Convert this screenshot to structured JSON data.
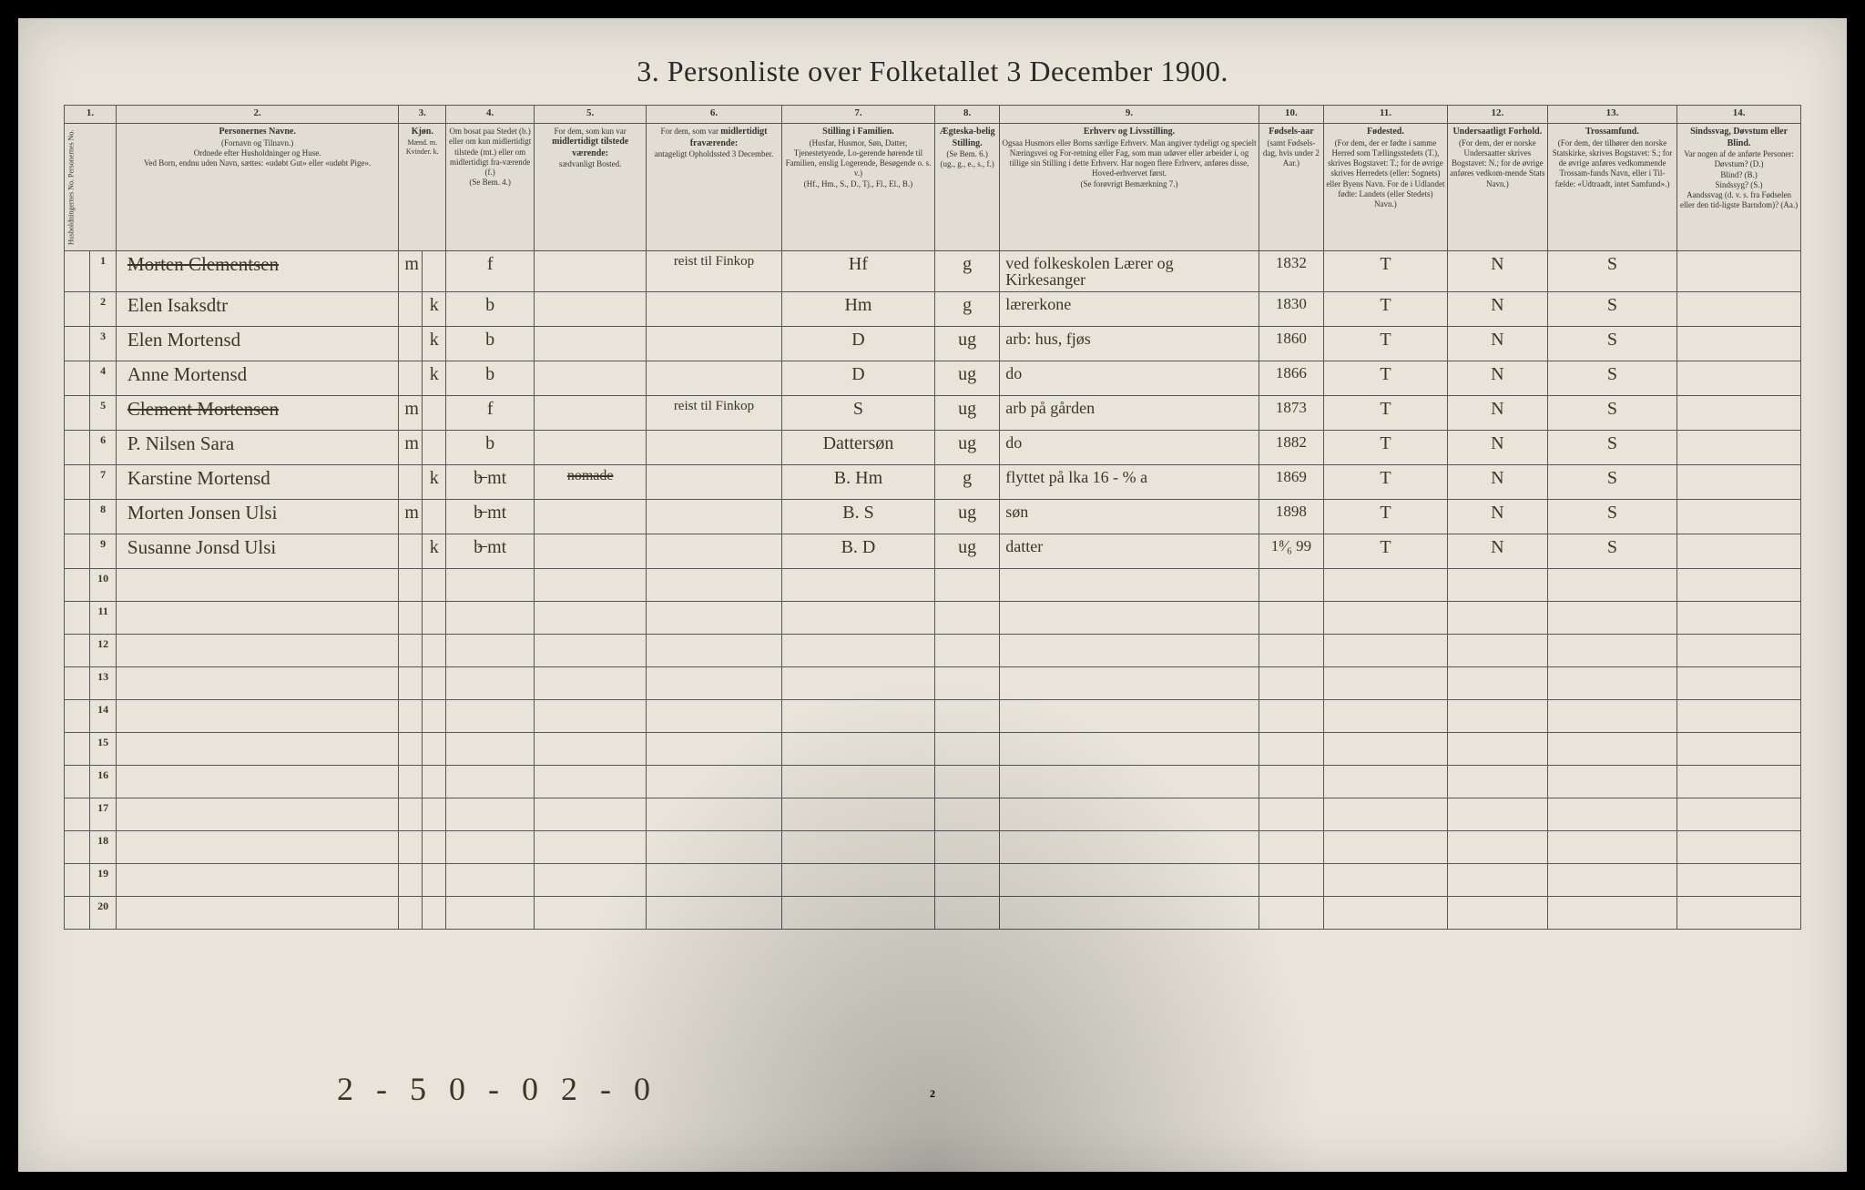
{
  "title": "3. Personliste over Folketallet 3 December 1900.",
  "page_number": "2",
  "footer_note": "2 - 5 0 - 0  2 - 0",
  "col_numbers": [
    "1.",
    "2.",
    "3.",
    "4.",
    "5.",
    "6.",
    "7.",
    "8.",
    "9.",
    "10.",
    "11.",
    "12.",
    "13.",
    "14."
  ],
  "headers": {
    "1": "Husholdningernes No.\nPersonernes No.",
    "2": "<strong>Personernes Navne.</strong><br>(Fornavn og Tilnavn.)<br>Ordnede efter Husholdninger og Huse.<br>Ved Born, endnu uden Navn, sættes: «udøbt Gut» eller «udøbt Pige».",
    "3": "<strong>Kjøn.</strong><br>Mænd. m.<br>Kvinder. k.",
    "4": "Om bosat paa Stedet (b.) eller om kun midlertidigt tilstede (mt.) eller om midlertidigt fra-værende (f.)<br>(Se Bem. 4.)",
    "5": "For dem, som kun var <strong>midlertidigt tilstede værende:</strong><br>sædvanligt Bosted.",
    "6": "For dem, som var <strong>midlertidigt fraværende:</strong><br>antageligt Opholdssted 3 December.",
    "7": "<strong>Stilling i Familien.</strong><br>(Husfar, Husmor, Søn, Datter, Tjenestetyende, Lo-gerende hørende til Familien, enslig Logerende, Besøgende o. s. v.)<br>(Hf., Hm., S., D., Tj., Fl., El., B.)",
    "8": "<strong>Ægteska-belig Stilling.</strong><br>(Se Bem. 6.)<br>(ug., g., e., s., f.)",
    "9": "<strong>Erhverv og Livsstilling.</strong><br>Ogsaa Husmors eller Borns særlige Erhverv. Man angiver tydeligt og specielt Næringsvei og For-retning eller Fag, som man udøver eller arbeider i, og tillige sin Stilling i dette Erhverv. Har nogen flere Erhverv, anføres disse, Hoved-erhvervet først.<br>(Se forøvrigt Bemærkning 7.)",
    "10": "<strong>Fødsels-aar</strong><br>(samt Fødsels-dag, hvis under 2 Aar.)",
    "11": "<strong>Fødested.</strong><br>(For dem, der er fødte i samme Herred som Tællingsstedets (T.), skrives Bogstavet: T.; for de øvrige skrives Herredets (eller: Sognets) eller Byens Navn. For de i Udlandet fødte: Landets (eller Stedets) Navn.)",
    "12": "<strong>Undersaatligt Forhold.</strong><br>(For dem, der er norske Undersaatter skrives Bogstavet: N.; for de øvrige anføres vedkom-mende Stats Navn.)",
    "13": "<strong>Trossamfund.</strong><br>(For dem, der tilhører den norske Statskirke, skrives Bogstavet: S.; for de øvrige anføres vedkommende Trossam-funds Navn, eller i Til-fælde: «Udtraadt, intet Samfund».)",
    "14": "<strong>Sindssvag, Døvstum eller Blind.</strong><br>Var nogen af de anførte Personer:<br>Døvstum? (D.)<br>Blind? (B.)<br>Sindssyg? (S.)<br>Aandssvag (d. v. s. fra Fødselen eller den tid-ligste Barndom)? (Aa.)"
  },
  "rows": [
    {
      "hh": "",
      "pn": "1",
      "name": "Morten Clementsen",
      "name_strike": true,
      "sex": "m",
      "res": "f",
      "c5": "",
      "c6": "reist til Finkop",
      "fam": "Hf",
      "marital": "g",
      "occ": "ved folkeskolen Lærer og Kirkesanger",
      "year": "1832",
      "birthplace": "T",
      "nat": "N",
      "rel": "S",
      "c14": ""
    },
    {
      "hh": "",
      "pn": "2",
      "name": "Elen Isaksdtr",
      "sex": "k",
      "res": "b",
      "c5": "",
      "c6": "",
      "fam": "Hm",
      "marital": "g",
      "occ": "lærerkone",
      "year": "1830",
      "birthplace": "T",
      "nat": "N",
      "rel": "S",
      "c14": ""
    },
    {
      "hh": "",
      "pn": "3",
      "name": "Elen Mortensd",
      "sex": "k",
      "res": "b",
      "c5": "",
      "c6": "",
      "fam": "D",
      "marital": "ug",
      "occ": "arb: hus, fjøs",
      "year": "1860",
      "birthplace": "T",
      "nat": "N",
      "rel": "S",
      "c14": ""
    },
    {
      "hh": "",
      "pn": "4",
      "name": "Anne Mortensd",
      "sex": "k",
      "res": "b",
      "c5": "",
      "c6": "",
      "fam": "D",
      "marital": "ug",
      "occ": "do",
      "year": "1866",
      "birthplace": "T",
      "nat": "N",
      "rel": "S",
      "c14": ""
    },
    {
      "hh": "",
      "pn": "5",
      "name": "Clement Mortensen",
      "name_strike": true,
      "sex": "m",
      "res": "f",
      "c5": "",
      "c6": "reist til Finkop",
      "fam": "S",
      "marital": "ug",
      "occ": "arb på gården",
      "year": "1873",
      "birthplace": "T",
      "nat": "N",
      "rel": "S",
      "c14": ""
    },
    {
      "hh": "",
      "pn": "6",
      "name": "P. Nilsen Sara",
      "sex": "m",
      "res": "b",
      "c5": "",
      "c6": "",
      "fam": "Dattersøn",
      "marital": "ug",
      "occ": "do",
      "year": "1882",
      "birthplace": "T",
      "nat": "N",
      "rel": "S",
      "c14": ""
    },
    {
      "hh": "",
      "pn": "7",
      "name": "Karstine Mortensd",
      "sex": "k",
      "res": "b̶  mt",
      "c5": "nomade",
      "c5_strike": true,
      "c6": "",
      "fam": "B. Hm",
      "marital": "g",
      "occ": "flyttet på lka 16 - % a",
      "year": "1869",
      "birthplace": "T",
      "nat": "N",
      "rel": "S",
      "c14": ""
    },
    {
      "hh": "",
      "pn": "8",
      "name": "Morten Jonsen Ulsi",
      "sex": "m",
      "res": "b̶  mt",
      "c5": "",
      "c6": "",
      "fam": "B. S",
      "marital": "ug",
      "occ": "søn",
      "year": "1898",
      "birthplace": "T",
      "nat": "N",
      "rel": "S",
      "c14": ""
    },
    {
      "hh": "",
      "pn": "9",
      "name": "Susanne Jonsd Ulsi",
      "sex": "k",
      "res": "b̶  mt",
      "c5": "",
      "c6": "",
      "fam": "B. D",
      "marital": "ug",
      "occ": "datter",
      "year": "1⁸⁄₆ 99",
      "birthplace": "T",
      "nat": "N",
      "rel": "S",
      "c14": ""
    }
  ],
  "empty_rows": [
    10,
    11,
    12,
    13,
    14,
    15,
    16,
    17,
    18,
    19,
    20
  ]
}
